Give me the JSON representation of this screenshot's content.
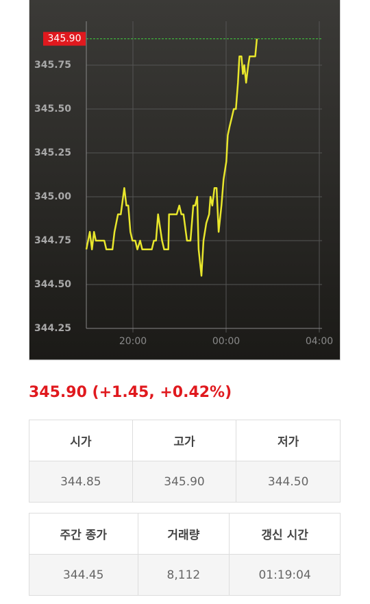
{
  "chart_data": {
    "type": "line",
    "color": "#e8e62c",
    "grid": true,
    "x": [
      18.0,
      18.15,
      18.24,
      18.33,
      18.41,
      18.77,
      18.86,
      19.12,
      19.21,
      19.36,
      19.48,
      19.63,
      19.72,
      19.8,
      19.89,
      19.98,
      20.1,
      20.19,
      20.31,
      20.4,
      20.81,
      20.9,
      20.99,
      21.08,
      21.25,
      21.34,
      21.52,
      21.55,
      21.73,
      21.88,
      21.99,
      22.08,
      22.17,
      22.32,
      22.47,
      22.59,
      22.67,
      22.76,
      22.82,
      22.94,
      23.03,
      23.15,
      23.27,
      23.33,
      23.41,
      23.5,
      23.59,
      23.68,
      23.8,
      23.89,
      24.01,
      24.07,
      24.15,
      24.24,
      24.33,
      24.42,
      24.51,
      24.57,
      24.66,
      24.72,
      24.78,
      24.86,
      24.95,
      25.01,
      25.25,
      25.32
    ],
    "values": [
      344.7,
      344.8,
      344.7,
      344.8,
      344.75,
      344.75,
      344.7,
      344.7,
      344.8,
      344.9,
      344.9,
      345.05,
      344.95,
      344.95,
      344.8,
      344.75,
      344.75,
      344.7,
      344.75,
      344.7,
      344.7,
      344.75,
      344.75,
      344.9,
      344.75,
      344.7,
      344.7,
      344.9,
      344.9,
      344.9,
      344.95,
      344.9,
      344.9,
      344.75,
      344.75,
      344.95,
      344.95,
      345.0,
      344.7,
      344.55,
      344.75,
      344.85,
      344.9,
      345.0,
      344.95,
      345.05,
      345.05,
      344.8,
      344.95,
      345.1,
      345.2,
      345.35,
      345.4,
      345.45,
      345.5,
      345.5,
      345.65,
      345.8,
      345.8,
      345.7,
      345.75,
      345.65,
      345.75,
      345.8,
      345.8,
      345.9
    ],
    "xlim": [
      18,
      28
    ],
    "xticks": [
      {
        "value": 20,
        "label": "20:00"
      },
      {
        "value": 24,
        "label": "00:00"
      },
      {
        "value": 28,
        "label": "04:00"
      }
    ],
    "ylim": [
      344.25,
      346.0
    ],
    "yticks": [
      344.25,
      {
        "value": 344.5,
        "label": "344.50"
      },
      344.75,
      {
        "value": 345.0,
        "label": "345.00"
      },
      345.25,
      {
        "value": 345.5,
        "label": "345.50"
      },
      345.75
    ],
    "reference": {
      "value": 345.9,
      "label": "345.90",
      "color": "#3fcf3f"
    }
  },
  "quote": "345.90 (+1.45, +0.42%)",
  "table1": {
    "headers": [
      "시가",
      "고가",
      "저가"
    ],
    "rows": [
      [
        "344.85",
        "345.90",
        "344.50"
      ]
    ]
  },
  "table2": {
    "headers": [
      "주간 종가",
      "거래량",
      "갱신 시간"
    ],
    "rows": [
      [
        "344.45",
        "8,112",
        "01:19:04"
      ]
    ]
  }
}
